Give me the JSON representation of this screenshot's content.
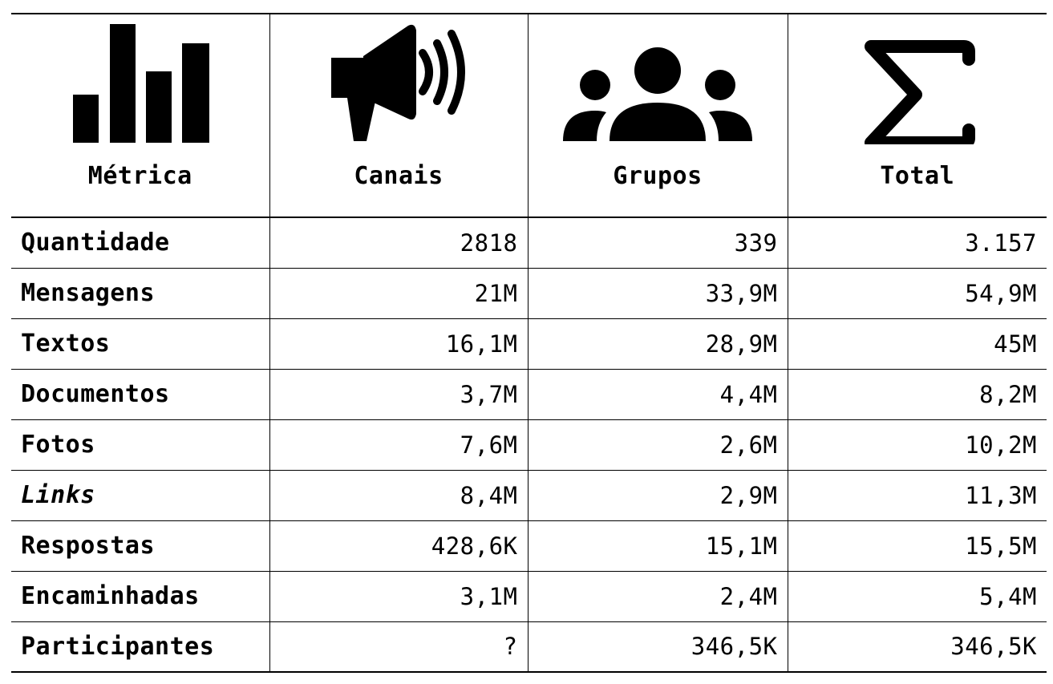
{
  "header": {
    "metric": {
      "label": "Métrica",
      "icon": "bar-chart-icon"
    },
    "channels": {
      "label": "Canais",
      "icon": "megaphone-icon"
    },
    "groups": {
      "label": "Grupos",
      "icon": "group-people-icon"
    },
    "total": {
      "label": "Total",
      "icon": "sigma-icon"
    }
  },
  "rows": [
    {
      "label": "Quantidade",
      "channels": "2818",
      "groups": "339",
      "total": "3.157"
    },
    {
      "label": "Mensagens",
      "channels": "21M",
      "groups": "33,9M",
      "total": "54,9M"
    },
    {
      "label": "Textos",
      "channels": "16,1M",
      "groups": "28,9M",
      "total": "45M"
    },
    {
      "label": "Documentos",
      "channels": "3,7M",
      "groups": "4,4M",
      "total": "8,2M"
    },
    {
      "label": "Fotos",
      "channels": "7,6M",
      "groups": "2,6M",
      "total": "10,2M"
    },
    {
      "label": "Links",
      "channels": "8,4M",
      "groups": "2,9M",
      "total": "11,3M"
    },
    {
      "label": "Respostas",
      "channels": "428,6K",
      "groups": "15,1M",
      "total": "15,5M"
    },
    {
      "label": "Encaminhadas",
      "channels": "3,1M",
      "groups": "2,4M",
      "total": "5,4M"
    },
    {
      "label": "Participantes",
      "channels": "?",
      "groups": "346,5K",
      "total": "346,5K"
    }
  ]
}
